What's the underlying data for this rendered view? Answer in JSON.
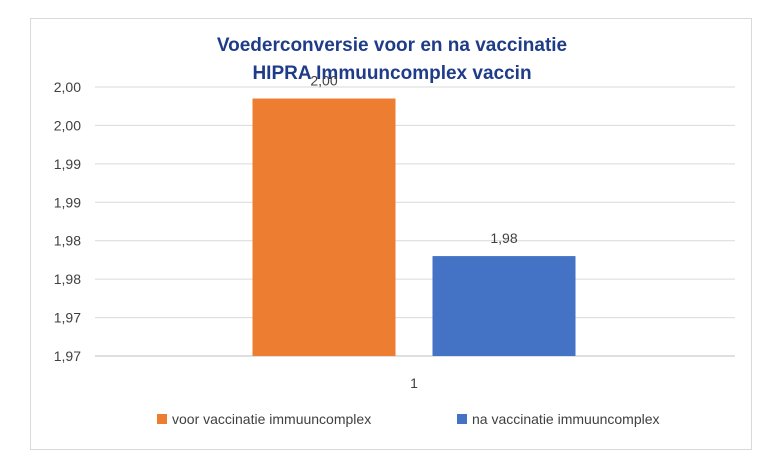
{
  "chart_data": {
    "type": "bar",
    "title": "Voederconversie voor en na vaccinatie",
    "subtitle": "HIPRA Immuuncomplex vaccin",
    "categories": [
      "1"
    ],
    "ylim": [
      1.965,
      2.0
    ],
    "y_ticks": [
      "1,97",
      "1,97",
      "1,98",
      "1,98",
      "1,99",
      "1,99",
      "2,00",
      "2,00"
    ],
    "y_tick_values": [
      1.965,
      1.97,
      1.975,
      1.98,
      1.985,
      1.99,
      1.995,
      2.0
    ],
    "grid": true,
    "legend_position": "bottom",
    "series": [
      {
        "name": "voor vaccinatie immuuncomplex",
        "values": [
          1.9985
        ],
        "label": "2,00",
        "color": "#ED7D31"
      },
      {
        "name": "na vaccinatie immuuncomplex",
        "values": [
          1.978
        ],
        "label": "1,98",
        "color": "#4472C4"
      }
    ],
    "title_color": "#1F3C88"
  }
}
